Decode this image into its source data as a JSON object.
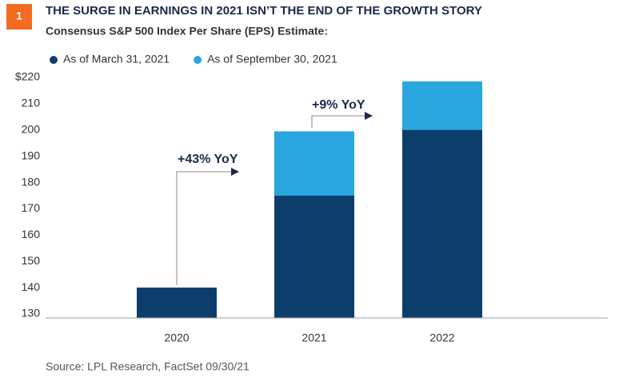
{
  "chart_data": {
    "type": "bar",
    "badge": "1",
    "title": "THE SURGE IN EARNINGS IN 2021 ISN’T THE END OF THE GROWTH STORY",
    "subtitle": "Consensus S&P 500 Index Per Share (EPS) Estimate:",
    "categories": [
      "2020",
      "2021",
      "2022"
    ],
    "series": [
      {
        "name": "As of September 30, 2021",
        "color": "#29a6de",
        "values": [
          140,
          199.5,
          218.5
        ]
      },
      {
        "name": "As of March 31, 2021",
        "color": "#0d3d6b",
        "values": [
          140,
          175,
          200
        ]
      }
    ],
    "ylim": [
      130,
      220
    ],
    "yticks": [
      130,
      140,
      150,
      160,
      170,
      180,
      190,
      200,
      210,
      {
        "value": 220,
        "label": "$220"
      }
    ],
    "annotations": [
      "+43% YoY",
      "+9% YoY"
    ],
    "source": "Source: LPL Research, FactSet  09/30/21"
  }
}
